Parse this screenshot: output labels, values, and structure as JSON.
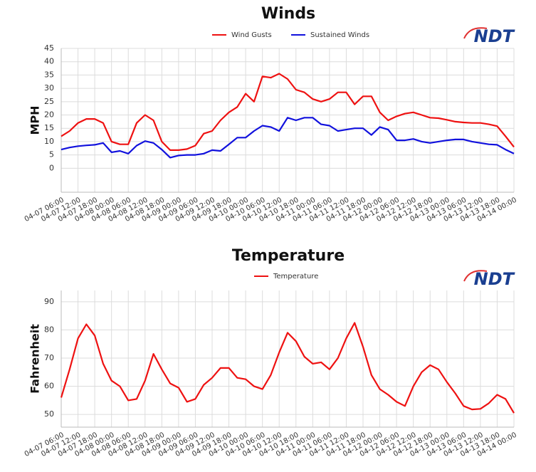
{
  "chart_data": [
    {
      "type": "line",
      "title": "Winds",
      "y_label": "MPH",
      "logo": "NDT",
      "x": [
        "04-07 06:00",
        "04-07 09:00",
        "04-07 12:00",
        "04-07 15:00",
        "04-07 18:00",
        "04-07 21:00",
        "04-08 00:00",
        "04-08 03:00",
        "04-08 06:00",
        "04-08 09:00",
        "04-08 12:00",
        "04-08 15:00",
        "04-08 18:00",
        "04-08 21:00",
        "04-09 00:00",
        "04-09 03:00",
        "04-09 06:00",
        "04-09 09:00",
        "04-09 12:00",
        "04-09 15:00",
        "04-09 18:00",
        "04-09 21:00",
        "04-10 00:00",
        "04-10 03:00",
        "04-10 06:00",
        "04-10 09:00",
        "04-10 12:00",
        "04-10 15:00",
        "04-10 18:00",
        "04-10 21:00",
        "04-11 00:00",
        "04-11 03:00",
        "04-11 06:00",
        "04-11 09:00",
        "04-11 12:00",
        "04-11 15:00",
        "04-11 18:00",
        "04-11 21:00",
        "04-12 00:00",
        "04-12 03:00",
        "04-12 06:00",
        "04-12 09:00",
        "04-12 12:00",
        "04-12 15:00",
        "04-12 18:00",
        "04-12 21:00",
        "04-13 00:00",
        "04-13 03:00",
        "04-13 06:00",
        "04-13 09:00",
        "04-13 12:00",
        "04-13 15:00",
        "04-13 18:00",
        "04-13 21:00",
        "04-14 00:00"
      ],
      "series": [
        {
          "name": "Wind Gusts",
          "color": "#ee1111",
          "values": [
            12,
            14,
            17,
            18.5,
            18.5,
            17,
            10,
            9,
            9,
            17,
            20,
            18,
            10,
            6.8,
            6.8,
            7.2,
            8.5,
            13,
            14,
            18,
            21,
            23,
            28,
            25,
            34.5,
            34,
            35.5,
            33.5,
            29.5,
            28.5,
            26,
            25,
            26,
            28.5,
            28.5,
            24,
            27,
            27,
            21,
            18,
            19.5,
            20.5,
            21,
            20,
            19,
            18.8,
            18.2,
            17.5,
            17.2,
            17,
            17,
            16.5,
            15.8,
            12,
            8
          ]
        },
        {
          "name": "Sustained Winds",
          "color": "#1111dd",
          "values": [
            7,
            7.8,
            8.3,
            8.6,
            8.8,
            9.5,
            6,
            6.5,
            5.5,
            8.5,
            10.2,
            9.5,
            7,
            4,
            4.8,
            5,
            5,
            5.5,
            6.8,
            6.5,
            9,
            11.5,
            11.5,
            14,
            16,
            15.5,
            14,
            19,
            18,
            19,
            19,
            16.5,
            16,
            14,
            14.5,
            15,
            15,
            12.5,
            15.5,
            14.5,
            10.5,
            10.5,
            11,
            10,
            9.5,
            10,
            10.5,
            10.8,
            10.8,
            10,
            9.5,
            9,
            8.8,
            7,
            5.5
          ]
        }
      ],
      "xlim": [
        "04-07 06:00",
        "04-14 00:00"
      ],
      "xticks": [
        "04-07 06:00",
        "04-07 12:00",
        "04-07 18:00",
        "04-08 00:00",
        "04-08 06:00",
        "04-08 12:00",
        "04-08 18:00",
        "04-09 00:00",
        "04-09 06:00",
        "04-09 12:00",
        "04-09 18:00",
        "04-10 00:00",
        "04-10 06:00",
        "04-10 12:00",
        "04-10 18:00",
        "04-11 00:00",
        "04-11 06:00",
        "04-11 12:00",
        "04-11 18:00",
        "04-12 00:00",
        "04-12 06:00",
        "04-12 12:00",
        "04-12 18:00",
        "04-13 00:00",
        "04-13 06:00",
        "04-13 12:00",
        "04-13 18:00",
        "04-14 00:00"
      ],
      "ylim": [
        -9,
        45
      ],
      "yticks": [
        0,
        5,
        10,
        15,
        20,
        25,
        30,
        35,
        40,
        45
      ],
      "grid": true
    },
    {
      "type": "line",
      "title": "Temperature",
      "y_label": "Fahrenheit",
      "logo": "NDT",
      "x": [
        "04-07 06:00",
        "04-07 09:00",
        "04-07 12:00",
        "04-07 15:00",
        "04-07 18:00",
        "04-07 21:00",
        "04-08 00:00",
        "04-08 03:00",
        "04-08 06:00",
        "04-08 09:00",
        "04-08 12:00",
        "04-08 15:00",
        "04-08 18:00",
        "04-08 21:00",
        "04-09 00:00",
        "04-09 03:00",
        "04-09 06:00",
        "04-09 09:00",
        "04-09 12:00",
        "04-09 15:00",
        "04-09 18:00",
        "04-09 21:00",
        "04-10 00:00",
        "04-10 03:00",
        "04-10 06:00",
        "04-10 09:00",
        "04-10 12:00",
        "04-10 15:00",
        "04-10 18:00",
        "04-10 21:00",
        "04-11 00:00",
        "04-11 03:00",
        "04-11 06:00",
        "04-11 09:00",
        "04-11 12:00",
        "04-11 15:00",
        "04-11 18:00",
        "04-11 21:00",
        "04-12 00:00",
        "04-12 03:00",
        "04-12 06:00",
        "04-12 09:00",
        "04-12 12:00",
        "04-12 15:00",
        "04-12 18:00",
        "04-12 21:00",
        "04-13 00:00",
        "04-13 03:00",
        "04-13 06:00",
        "04-13 09:00",
        "04-13 12:00",
        "04-13 15:00",
        "04-13 18:00",
        "04-13 21:00",
        "04-14 00:00"
      ],
      "series": [
        {
          "name": "Temperature",
          "color": "#ee1111",
          "values": [
            56,
            66,
            77,
            82,
            78,
            68,
            62,
            60,
            55,
            55.5,
            62,
            71.5,
            66,
            61,
            59.5,
            54.5,
            55.5,
            60.5,
            63,
            66.5,
            66.5,
            63,
            62.5,
            60,
            59,
            64,
            72,
            79,
            76,
            70.5,
            68,
            68.5,
            66,
            70,
            77,
            82.5,
            74,
            64,
            59,
            57,
            54.5,
            53,
            60,
            65,
            67.5,
            66,
            61.5,
            57.5,
            53,
            51.8,
            52,
            54,
            57,
            55.5,
            50.5
          ]
        }
      ],
      "xlim": [
        "04-07 06:00",
        "04-14 00:00"
      ],
      "xticks": [
        "04-07 06:00",
        "04-07 12:00",
        "04-07 18:00",
        "04-08 00:00",
        "04-08 06:00",
        "04-08 12:00",
        "04-08 18:00",
        "04-09 00:00",
        "04-09 06:00",
        "04-09 12:00",
        "04-09 18:00",
        "04-10 00:00",
        "04-10 06:00",
        "04-10 12:00",
        "04-10 18:00",
        "04-11 00:00",
        "04-11 06:00",
        "04-11 12:00",
        "04-11 18:00",
        "04-12 00:00",
        "04-12 06:00",
        "04-12 12:00",
        "04-12 18:00",
        "04-13 00:00",
        "04-13 06:00",
        "04-13 12:00",
        "04-13 18:00",
        "04-14 00:00"
      ],
      "ylim": [
        45.5,
        94
      ],
      "yticks": [
        50,
        60,
        70,
        80,
        90
      ],
      "grid": true
    }
  ]
}
